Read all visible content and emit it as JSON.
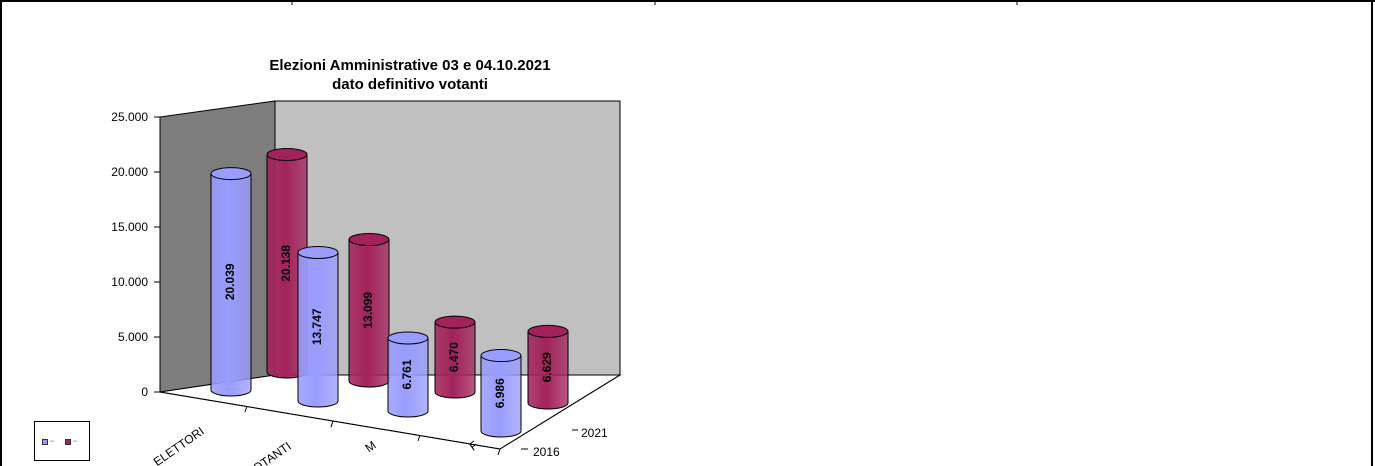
{
  "chart_data": {
    "type": "bar",
    "style": "3d-cylinder",
    "title": "Elezioni Amministrative 03 e 04.10.2021",
    "subtitle": "dato definitivo votanti",
    "categories": [
      "ELETTORI",
      "VOTANTI",
      "M",
      "F"
    ],
    "series": [
      {
        "name": "2016",
        "values": [
          20039,
          13747,
          6761,
          6986
        ],
        "labels": [
          "20.039",
          "13.747",
          "6.761",
          "6.986"
        ],
        "color": "#9a9cff"
      },
      {
        "name": "2021",
        "values": [
          20138,
          13099,
          6470,
          6629
        ],
        "labels": [
          "20.138",
          "13.099",
          "6.470",
          "6.629"
        ],
        "color": "#a3225b"
      }
    ],
    "depth_labels": [
      "2021",
      "2016"
    ],
    "y_ticks": [
      "0",
      "5.000",
      "10.000",
      "15.000",
      "20.000",
      "25.000"
    ],
    "ylim": [
      0,
      25000
    ],
    "wall_colors": {
      "side": "#7d7d7d",
      "back": "#c0c0c0"
    },
    "legend": {
      "position": "bottom-left",
      "entries": [
        "2016",
        "2021"
      ]
    }
  }
}
